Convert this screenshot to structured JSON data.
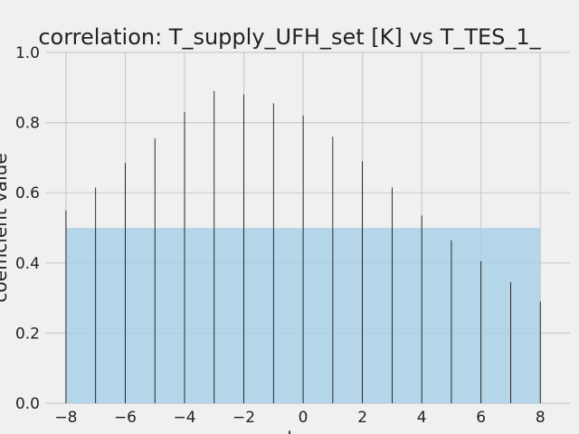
{
  "chart_data": {
    "type": "bar",
    "title": "correlation: T_supply_UFH_set [K] vs T_TES_1_",
    "xlabel": "l",
    "ylabel": "coefficient value",
    "x": [
      -8,
      -7,
      -6,
      -5,
      -4,
      -3,
      -2,
      -1,
      0,
      1,
      2,
      3,
      4,
      5,
      6,
      7,
      8
    ],
    "values": [
      0.55,
      0.615,
      0.685,
      0.755,
      0.83,
      0.89,
      0.88,
      0.855,
      0.82,
      0.76,
      0.69,
      0.615,
      0.535,
      0.465,
      0.405,
      0.345,
      0.29
    ],
    "xlim": [
      -8.7,
      9.0
    ],
    "ylim": [
      0,
      1.0
    ],
    "xticks": [
      -8,
      -6,
      -4,
      -2,
      0,
      2,
      4,
      6,
      8
    ],
    "xtick_labels": [
      "−8",
      "−6",
      "−4",
      "−2",
      "0",
      "2",
      "4",
      "6",
      "8"
    ],
    "yticks": [
      0.0,
      0.2,
      0.4,
      0.6,
      0.8,
      1.0
    ],
    "ytick_labels": [
      "0.0",
      "0.2",
      "0.4",
      "0.6",
      "0.8",
      "1.0"
    ],
    "threshold_band": {
      "x_from": -8,
      "x_to": 8,
      "y_from": 0,
      "y_to": 0.5
    },
    "grid": true,
    "colors": {
      "background": "#f0f0f0",
      "grid": "#cbcbcb",
      "stem": "#000000",
      "band": "#a6cfe6",
      "text": "#222222"
    }
  }
}
